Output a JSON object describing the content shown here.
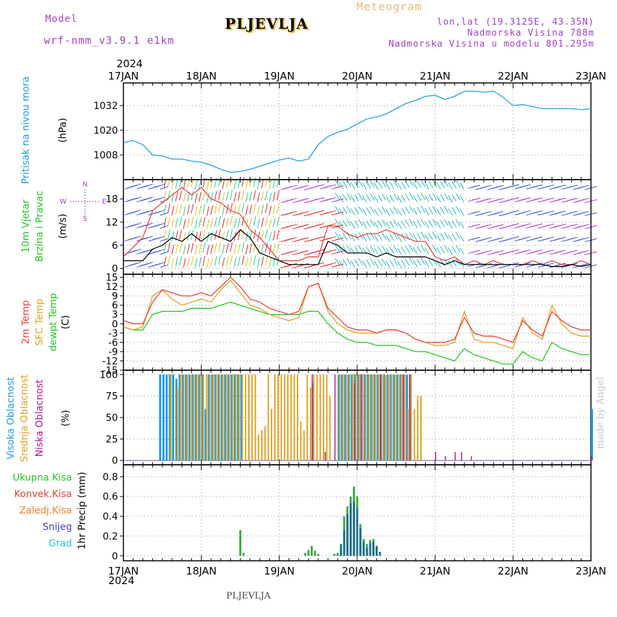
{
  "header": {
    "model_label": "Model",
    "model_name": "wrf-nmm_v3.9.1  e1km",
    "station": "PLJEVLJA",
    "product": "Meteogram",
    "lonlat": "lon,lat (19.3125E, 43.35N)",
    "elevation": "Nadmorska Visina 788m",
    "model_elevation": "Nadmorska Visina u modelu 801.295m",
    "footer_station": "PLJEVLJA",
    "credit": "made by Angel",
    "year_top": "2024",
    "year_bottom": "2024"
  },
  "colors": {
    "pressure": "#1e9be8",
    "temp2m": "#e8403a",
    "sfc_temp": "#e0a020",
    "dewpoint": "#22c622",
    "high_cloud": "#1e9be8",
    "mid_cloud": "#e0a020",
    "low_cloud": "#b0188c",
    "wind_black": "#000000",
    "wind_red": "#e8403a",
    "precip_green": "#3ea83e",
    "precip_teal": "#1e6e8c",
    "header_purple": "#a040c8",
    "header_orange": "#e8b878"
  },
  "time_axis": {
    "labels": [
      "17JAN",
      "18JAN",
      "19JAN",
      "20JAN",
      "21JAN",
      "22JAN",
      "23JAN"
    ],
    "start": 0,
    "end": 144,
    "unit": "hours since 17JAN 00Z"
  },
  "chart_data": [
    {
      "type": "line",
      "panel": "pressure",
      "ylabel_name": "Pritisak na nivou mora",
      "ylabel_unit": "(hPa)",
      "yticks": [
        1008,
        1020,
        1032
      ],
      "ylim": [
        996,
        1043
      ],
      "series": [
        {
          "x": [
            0,
            3,
            6,
            9,
            12,
            15,
            18,
            21,
            24,
            27,
            30,
            33,
            36,
            39,
            42,
            45,
            48,
            51,
            54,
            57,
            60,
            63,
            66,
            69,
            72,
            75,
            78,
            81,
            84,
            87,
            90,
            93,
            96,
            99,
            102,
            105,
            108,
            111,
            114,
            117,
            120,
            123,
            126,
            129,
            132,
            135,
            138,
            141,
            144
          ],
          "y": [
            1014,
            1015,
            1013,
            1008,
            1007.5,
            1006,
            1006,
            1005,
            1004.5,
            1003,
            1001,
            999.5,
            1000,
            1001,
            1002.5,
            1004,
            1005.5,
            1006.5,
            1005,
            1006,
            1013,
            1017,
            1019,
            1020.5,
            1023,
            1025.5,
            1026.5,
            1028,
            1030.5,
            1033,
            1034.5,
            1036.5,
            1037,
            1035,
            1036.5,
            1039,
            1039,
            1038.5,
            1039,
            1036,
            1032,
            1032.5,
            1031.5,
            1030.5,
            1030.5,
            1030.5,
            1030.5,
            1030,
            1030.5
          ]
        }
      ]
    },
    {
      "type": "line",
      "panel": "wind",
      "ylabel_name": "10m Vjetar",
      "ylabel_name2": "Brzina i Pravac",
      "ylabel_unit": "(m/s)",
      "compass": {
        "n": "N",
        "w": "W",
        "e": "E",
        "s": "S"
      },
      "yticks": [
        0,
        6,
        12,
        18
      ],
      "ylim": [
        -1.5,
        23
      ],
      "series": [
        {
          "name": "wind speed",
          "x": [
            0,
            6,
            9,
            12,
            15,
            18,
            21,
            24,
            27,
            30,
            33,
            36,
            39,
            42,
            45,
            48,
            51,
            54,
            57,
            60,
            63,
            66,
            69,
            72,
            75,
            78,
            81,
            84,
            87,
            90,
            93,
            96,
            99,
            102,
            105,
            108,
            111,
            114,
            117,
            120,
            123,
            126,
            129,
            132,
            135,
            138,
            141,
            144
          ],
          "y": [
            2,
            2,
            5,
            6,
            8,
            7,
            9,
            7,
            9,
            8,
            7,
            10,
            8,
            4,
            3,
            2,
            1,
            1,
            1,
            1,
            7,
            6,
            4,
            4,
            4,
            3,
            4,
            3,
            3,
            3,
            3,
            2,
            1,
            2,
            1,
            1,
            1,
            1,
            1,
            1,
            1,
            1,
            1,
            0.5,
            0.5,
            1,
            0.5,
            1
          ]
        },
        {
          "name": "wind gust",
          "x": [
            0,
            6,
            9,
            12,
            15,
            18,
            21,
            24,
            27,
            30,
            33,
            36,
            39,
            42,
            45,
            48,
            51,
            54,
            57,
            60,
            63,
            66,
            69,
            72,
            75,
            78,
            81,
            84,
            87,
            90,
            93,
            96,
            99,
            102,
            105,
            108,
            111,
            114,
            117,
            120,
            123,
            126,
            129,
            132,
            135,
            138,
            141,
            144
          ],
          "y": [
            3,
            8,
            15,
            17,
            19,
            21,
            19,
            21,
            18,
            17,
            15,
            14,
            10,
            8,
            5,
            2,
            2,
            2,
            3,
            3,
            11,
            11,
            9,
            8,
            9,
            9,
            10,
            9,
            8,
            7,
            7,
            3,
            2,
            3,
            1,
            2,
            1,
            2,
            1,
            1,
            1,
            2,
            1,
            2,
            1,
            1,
            2,
            1
          ]
        }
      ]
    },
    {
      "type": "line",
      "panel": "temperature",
      "ylabel_name": "2m Temp",
      "ylabel_name2": "SFC Temp",
      "ylabel_name3": "dewpt Temp",
      "ylabel_unit": "(C)",
      "yticks": [
        15,
        12,
        9,
        6,
        3,
        0,
        -3,
        -6,
        -9,
        -12,
        -15
      ],
      "ylim": [
        -15,
        16
      ],
      "series": [
        {
          "name": "2m Temp",
          "x": [
            0,
            3,
            6,
            9,
            12,
            15,
            18,
            21,
            24,
            27,
            30,
            33,
            36,
            39,
            42,
            45,
            48,
            51,
            54,
            57,
            60,
            63,
            66,
            69,
            72,
            75,
            78,
            81,
            84,
            87,
            90,
            93,
            96,
            99,
            102,
            105,
            108,
            111,
            114,
            117,
            120,
            123,
            126,
            129,
            132,
            135,
            138,
            141,
            144
          ],
          "y": [
            1,
            0,
            0,
            7,
            11,
            10,
            9,
            9,
            10,
            9,
            12,
            15,
            12,
            8,
            7,
            5,
            4,
            3,
            4,
            12,
            13,
            5,
            2,
            -1,
            -2,
            -2,
            -3,
            -2,
            -2,
            -3,
            -5,
            -6,
            -6,
            -6,
            -5,
            2,
            -3,
            -4,
            -4,
            -5,
            -6,
            1,
            -2,
            -4,
            4,
            1,
            -1,
            -2,
            -2
          ]
        },
        {
          "name": "SFC Temp",
          "x": [
            0,
            3,
            6,
            9,
            12,
            15,
            18,
            21,
            24,
            27,
            30,
            33,
            36,
            39,
            42,
            45,
            48,
            51,
            54,
            57,
            60,
            63,
            66,
            69,
            72,
            75,
            78,
            81,
            84,
            87,
            90,
            93,
            96,
            99,
            102,
            105,
            108,
            111,
            114,
            117,
            120,
            123,
            126,
            129,
            132,
            135,
            138,
            141,
            144
          ],
          "y": [
            -1,
            -2,
            -1,
            9,
            11,
            8,
            6,
            7,
            8,
            7,
            11,
            14,
            10,
            6,
            5,
            3,
            2,
            1,
            2,
            12,
            13,
            4,
            0,
            -2,
            -3,
            -3,
            -3,
            -2,
            -2,
            -3,
            -5,
            -6,
            -7,
            -7,
            -6,
            4,
            -5,
            -6,
            -6,
            -7,
            -8,
            2,
            -3,
            -5,
            6,
            0,
            -3,
            -4,
            -4
          ]
        },
        {
          "name": "dewpt Temp",
          "x": [
            0,
            3,
            6,
            9,
            12,
            15,
            18,
            21,
            24,
            27,
            30,
            33,
            36,
            39,
            42,
            45,
            48,
            51,
            54,
            57,
            60,
            63,
            66,
            69,
            72,
            75,
            78,
            81,
            84,
            87,
            90,
            93,
            96,
            99,
            102,
            105,
            108,
            111,
            114,
            117,
            120,
            123,
            126,
            129,
            132,
            135,
            138,
            141,
            144
          ],
          "y": [
            -1,
            -2,
            -2,
            3,
            4,
            4,
            4,
            5,
            5,
            5,
            6,
            7,
            6,
            5,
            4,
            3,
            3,
            3,
            3,
            4,
            4,
            0,
            -3,
            -5,
            -6,
            -6,
            -7,
            -7,
            -7,
            -8,
            -9,
            -9,
            -10,
            -11,
            -12,
            -8,
            -10,
            -11,
            -12,
            -13,
            -13,
            -9,
            -11,
            -12,
            -6,
            -8,
            -9,
            -10,
            -10
          ]
        }
      ]
    },
    {
      "type": "bar",
      "panel": "clouds",
      "ylabel_name": "Visoka Oblacnost",
      "ylabel_name2": "Srednja Oblacnost",
      "ylabel_name3": "Niska Oblacnost",
      "ylabel_unit": "(%)",
      "yticks": [
        0,
        25,
        50,
        75,
        100
      ],
      "ylim": [
        -5,
        105
      ],
      "series": [
        {
          "name": "high",
          "x": [
            11,
            12,
            13,
            14,
            15,
            16,
            17,
            18,
            19,
            20,
            21,
            22,
            23,
            24,
            25,
            26,
            27,
            28,
            29,
            30,
            31,
            32,
            33,
            34,
            35,
            36,
            58,
            66,
            67,
            68,
            69,
            70,
            71,
            72,
            73,
            74,
            75,
            76,
            77,
            78,
            79,
            80,
            81,
            82,
            83,
            84,
            85,
            86,
            87,
            88,
            144
          ],
          "y": [
            100,
            100,
            100,
            100,
            100,
            95,
            100,
            100,
            100,
            100,
            100,
            100,
            100,
            100,
            60,
            100,
            100,
            100,
            100,
            100,
            100,
            100,
            100,
            100,
            100,
            100,
            90,
            100,
            100,
            100,
            100,
            100,
            100,
            100,
            100,
            100,
            100,
            100,
            100,
            100,
            100,
            100,
            100,
            100,
            100,
            100,
            100,
            100,
            100,
            100,
            60
          ]
        },
        {
          "name": "mid",
          "x": [
            14,
            16,
            17,
            18,
            19,
            20,
            21,
            22,
            23,
            24,
            25,
            26,
            27,
            28,
            29,
            30,
            31,
            32,
            33,
            34,
            35,
            36,
            37,
            38,
            39,
            40,
            41,
            42,
            43,
            44,
            45,
            46,
            47,
            48,
            49,
            50,
            51,
            52,
            53,
            54,
            55,
            56,
            57,
            58,
            59,
            60,
            61,
            62,
            63,
            66,
            67,
            68,
            69,
            70,
            71,
            72,
            73,
            74,
            75,
            76,
            77,
            78,
            79,
            80,
            81,
            82,
            83,
            84,
            85,
            86,
            87,
            88,
            89,
            90,
            91
          ],
          "y": [
            100,
            85,
            100,
            100,
            100,
            100,
            100,
            100,
            100,
            100,
            100,
            100,
            100,
            100,
            100,
            100,
            100,
            100,
            100,
            100,
            100,
            100,
            100,
            100,
            100,
            100,
            30,
            35,
            40,
            100,
            60,
            100,
            100,
            100,
            100,
            100,
            100,
            100,
            100,
            45,
            35,
            100,
            85,
            100,
            100,
            100,
            100,
            100,
            75,
            100,
            100,
            100,
            100,
            100,
            100,
            100,
            100,
            100,
            100,
            100,
            100,
            100,
            100,
            100,
            100,
            100,
            100,
            100,
            100,
            100,
            60,
            100,
            60,
            75,
            75
          ]
        },
        {
          "name": "low",
          "x": [
            58,
            62,
            65,
            71,
            73,
            79,
            86,
            88,
            96,
            99,
            102,
            104,
            107,
            144
          ],
          "y": [
            100,
            10,
            100,
            90,
            100,
            100,
            100,
            100,
            10,
            5,
            10,
            10,
            5,
            5
          ]
        }
      ]
    },
    {
      "type": "bar",
      "panel": "precip",
      "ylabel_name": "1hr Precip (mm)",
      "legend": [
        "Ukupna Kisa",
        "Konvek.Kisa",
        "Zaledj.Kisa",
        "Snijeg",
        "Grad"
      ],
      "legend_colors": [
        "#22c622",
        "#e8403a",
        "#f08030",
        "#4040e0",
        "#20c8c8"
      ],
      "yticks": [
        0,
        0.2,
        0.4,
        0.6,
        0.8
      ],
      "ylim": [
        -0.05,
        0.92
      ],
      "series": [
        {
          "name": "Ukupna Kisa",
          "x": [
            36,
            37,
            56,
            57,
            58,
            59,
            60,
            65,
            66,
            67,
            68,
            69,
            70,
            71,
            72,
            73,
            74,
            75,
            76,
            77,
            78
          ],
          "y": [
            0.26,
            0.03,
            0.03,
            0.06,
            0.1,
            0.05,
            0.02,
            0.02,
            0.03,
            0.05,
            0.4,
            0.5,
            0.6,
            0.7,
            0.6,
            0.32,
            0.17,
            0.12,
            0.16,
            0.17,
            0.07
          ]
        },
        {
          "name": "Snijeg",
          "x": [
            67,
            68,
            69,
            70,
            71,
            72,
            73,
            74,
            75,
            76,
            77,
            78,
            79
          ],
          "y": [
            0.12,
            0.26,
            0.42,
            0.53,
            0.55,
            0.48,
            0.28,
            0.14,
            0.08,
            0.13,
            0.14,
            0.1,
            0.04
          ]
        }
      ]
    }
  ]
}
